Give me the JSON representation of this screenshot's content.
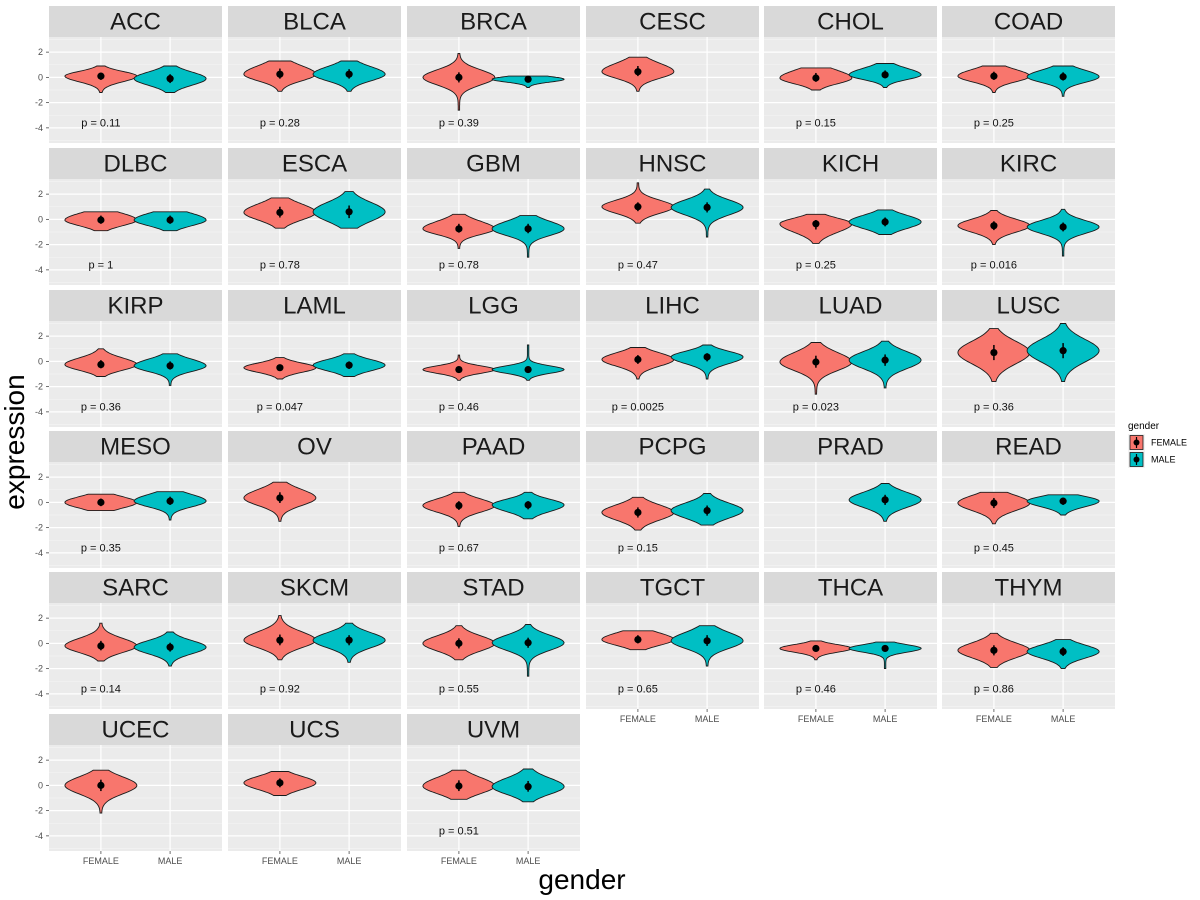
{
  "chart_data": {
    "type": "violin",
    "xlabel": "gender",
    "ylabel": "expression",
    "categories": [
      "FEMALE",
      "MALE"
    ],
    "ylim": [
      -5.2,
      3.2
    ],
    "yticks": [
      -4,
      -2,
      0,
      2
    ],
    "legend": {
      "title": "gender",
      "placement": "right",
      "entries": [
        {
          "name": "FEMALE",
          "color": "#F8766D"
        },
        {
          "name": "MALE",
          "color": "#00BFC4"
        }
      ]
    },
    "panels": [
      {
        "name": "ACC",
        "p": "p = 0.11",
        "FEMALE": {
          "median": 0.1,
          "min": -1.2,
          "max": 0.9,
          "q1": -0.2,
          "q3": 0.35
        },
        "MALE": {
          "median": -0.1,
          "min": -1.2,
          "max": 0.9,
          "q1": -0.45,
          "q3": 0.25
        }
      },
      {
        "name": "BLCA",
        "p": "p = 0.28",
        "FEMALE": {
          "median": 0.25,
          "min": -1.1,
          "max": 1.3,
          "q1": -0.1,
          "q3": 0.7
        },
        "MALE": {
          "median": 0.25,
          "min": -1.1,
          "max": 1.3,
          "q1": -0.1,
          "q3": 0.65
        }
      },
      {
        "name": "BRCA",
        "p": "p = 0.39",
        "FEMALE": {
          "median": 0.0,
          "min": -2.6,
          "max": 1.9,
          "q1": -0.4,
          "q3": 0.4
        },
        "MALE": {
          "median": -0.15,
          "min": -0.8,
          "max": 0.1,
          "q1": -0.3,
          "q3": 0.0
        }
      },
      {
        "name": "CESC",
        "p": "",
        "FEMALE": {
          "median": 0.45,
          "min": -1.1,
          "max": 1.6,
          "q1": 0.1,
          "q3": 0.9
        },
        "MALE": null
      },
      {
        "name": "CHOL",
        "p": "p = 0.15",
        "FEMALE": {
          "median": -0.05,
          "min": -1.0,
          "max": 0.75,
          "q1": -0.35,
          "q3": 0.35
        },
        "MALE": {
          "median": 0.2,
          "min": -0.8,
          "max": 1.1,
          "q1": -0.05,
          "q3": 0.55
        }
      },
      {
        "name": "COAD",
        "p": "p = 0.25",
        "FEMALE": {
          "median": 0.1,
          "min": -1.2,
          "max": 0.9,
          "q1": -0.2,
          "q3": 0.45
        },
        "MALE": {
          "median": 0.05,
          "min": -1.5,
          "max": 0.9,
          "q1": -0.25,
          "q3": 0.4
        }
      },
      {
        "name": "DLBC",
        "p": "p = 1",
        "FEMALE": {
          "median": -0.05,
          "min": -0.9,
          "max": 0.6,
          "q1": -0.35,
          "q3": 0.3
        },
        "MALE": {
          "median": -0.05,
          "min": -0.9,
          "max": 0.6,
          "q1": -0.35,
          "q3": 0.3
        }
      },
      {
        "name": "ESCA",
        "p": "p = 0.78",
        "FEMALE": {
          "median": 0.55,
          "min": -0.7,
          "max": 1.7,
          "q1": 0.15,
          "q3": 1.0
        },
        "MALE": {
          "median": 0.6,
          "min": -0.7,
          "max": 2.2,
          "q1": 0.1,
          "q3": 1.1
        }
      },
      {
        "name": "GBM",
        "p": "p = 0.78",
        "FEMALE": {
          "median": -0.75,
          "min": -2.3,
          "max": 0.4,
          "q1": -1.05,
          "q3": -0.35
        },
        "MALE": {
          "median": -0.75,
          "min": -3.0,
          "max": 0.3,
          "q1": -1.1,
          "q3": -0.35
        }
      },
      {
        "name": "HNSC",
        "p": "p = 0.47",
        "FEMALE": {
          "median": 1.0,
          "min": -0.3,
          "max": 2.9,
          "q1": 0.65,
          "q3": 1.35
        },
        "MALE": {
          "median": 0.95,
          "min": -1.4,
          "max": 2.4,
          "q1": 0.55,
          "q3": 1.35
        }
      },
      {
        "name": "KICH",
        "p": "p = 0.25",
        "FEMALE": {
          "median": -0.35,
          "min": -1.9,
          "max": 0.4,
          "q1": -0.8,
          "q3": -0.05
        },
        "MALE": {
          "median": -0.2,
          "min": -1.2,
          "max": 0.75,
          "q1": -0.55,
          "q3": 0.15
        }
      },
      {
        "name": "KIRC",
        "p": "p = 0.016",
        "FEMALE": {
          "median": -0.5,
          "min": -2.0,
          "max": 0.7,
          "q1": -0.85,
          "q3": -0.15
        },
        "MALE": {
          "median": -0.6,
          "min": -2.9,
          "max": 0.8,
          "q1": -0.95,
          "q3": -0.25
        }
      },
      {
        "name": "KIRP",
        "p": "p = 0.36",
        "FEMALE": {
          "median": -0.25,
          "min": -1.2,
          "max": 1.0,
          "q1": -0.55,
          "q3": 0.1
        },
        "MALE": {
          "median": -0.35,
          "min": -1.9,
          "max": 0.6,
          "q1": -0.65,
          "q3": 0.0
        }
      },
      {
        "name": "LAML",
        "p": "p = 0.047",
        "FEMALE": {
          "median": -0.5,
          "min": -1.4,
          "max": 0.3,
          "q1": -0.75,
          "q3": -0.25
        },
        "MALE": {
          "median": -0.3,
          "min": -1.2,
          "max": 0.6,
          "q1": -0.6,
          "q3": 0.0
        }
      },
      {
        "name": "LGG",
        "p": "p = 0.46",
        "FEMALE": {
          "median": -0.65,
          "min": -1.5,
          "max": 0.5,
          "q1": -0.85,
          "q3": -0.45
        },
        "MALE": {
          "median": -0.65,
          "min": -1.5,
          "max": 1.3,
          "q1": -0.85,
          "q3": -0.45
        }
      },
      {
        "name": "LIHC",
        "p": "p = 0.0025",
        "FEMALE": {
          "median": 0.15,
          "min": -1.4,
          "max": 1.1,
          "q1": -0.2,
          "q3": 0.5
        },
        "MALE": {
          "median": 0.35,
          "min": -1.4,
          "max": 1.3,
          "q1": 0.0,
          "q3": 0.65
        }
      },
      {
        "name": "LUAD",
        "p": "p = 0.023",
        "FEMALE": {
          "median": -0.05,
          "min": -2.6,
          "max": 1.5,
          "q1": -0.5,
          "q3": 0.45
        },
        "MALE": {
          "median": 0.1,
          "min": -2.1,
          "max": 1.6,
          "q1": -0.35,
          "q3": 0.55
        }
      },
      {
        "name": "LUSC",
        "p": "p = 0.36",
        "FEMALE": {
          "median": 0.7,
          "min": -1.6,
          "max": 2.6,
          "q1": 0.1,
          "q3": 1.3
        },
        "MALE": {
          "median": 0.85,
          "min": -1.6,
          "max": 3.0,
          "q1": 0.25,
          "q3": 1.45
        }
      },
      {
        "name": "MESO",
        "p": "p = 0.35",
        "FEMALE": {
          "median": 0.0,
          "min": -0.65,
          "max": 0.65,
          "q1": -0.3,
          "q3": 0.3
        },
        "MALE": {
          "median": 0.1,
          "min": -1.4,
          "max": 0.85,
          "q1": -0.2,
          "q3": 0.45
        }
      },
      {
        "name": "OV",
        "p": "",
        "FEMALE": {
          "median": 0.35,
          "min": -1.5,
          "max": 1.6,
          "q1": -0.05,
          "q3": 0.8
        },
        "MALE": null
      },
      {
        "name": "PAAD",
        "p": "p = 0.67",
        "FEMALE": {
          "median": -0.25,
          "min": -1.9,
          "max": 0.8,
          "q1": -0.6,
          "q3": 0.1
        },
        "MALE": {
          "median": -0.2,
          "min": -1.3,
          "max": 0.8,
          "q1": -0.55,
          "q3": 0.1
        }
      },
      {
        "name": "PCPG",
        "p": "p = 0.15",
        "FEMALE": {
          "median": -0.8,
          "min": -2.2,
          "max": 0.4,
          "q1": -1.2,
          "q3": -0.4
        },
        "MALE": {
          "median": -0.65,
          "min": -1.8,
          "max": 0.7,
          "q1": -1.05,
          "q3": -0.25
        }
      },
      {
        "name": "PRAD",
        "p": "",
        "FEMALE": null,
        "MALE": {
          "median": 0.2,
          "min": -1.5,
          "max": 1.5,
          "q1": -0.2,
          "q3": 0.6
        }
      },
      {
        "name": "READ",
        "p": "p = 0.45",
        "FEMALE": {
          "median": -0.05,
          "min": -1.7,
          "max": 0.8,
          "q1": -0.45,
          "q3": 0.35
        },
        "MALE": {
          "median": 0.1,
          "min": -1.0,
          "max": 0.6,
          "q1": -0.2,
          "q3": 0.35
        }
      },
      {
        "name": "SARC",
        "p": "p = 0.14",
        "FEMALE": {
          "median": -0.2,
          "min": -1.4,
          "max": 1.6,
          "q1": -0.55,
          "q3": 0.2
        },
        "MALE": {
          "median": -0.3,
          "min": -1.8,
          "max": 0.9,
          "q1": -0.65,
          "q3": 0.05
        }
      },
      {
        "name": "SKCM",
        "p": "p = 0.92",
        "FEMALE": {
          "median": 0.25,
          "min": -1.3,
          "max": 2.2,
          "q1": -0.15,
          "q3": 0.7
        },
        "MALE": {
          "median": 0.25,
          "min": -1.5,
          "max": 1.6,
          "q1": -0.15,
          "q3": 0.65
        }
      },
      {
        "name": "STAD",
        "p": "p = 0.55",
        "FEMALE": {
          "median": 0.0,
          "min": -1.3,
          "max": 1.4,
          "q1": -0.4,
          "q3": 0.4
        },
        "MALE": {
          "median": 0.05,
          "min": -2.6,
          "max": 1.5,
          "q1": -0.35,
          "q3": 0.45
        }
      },
      {
        "name": "TGCT",
        "p": "p = 0.65",
        "FEMALE": {
          "median": 0.3,
          "min": -0.5,
          "max": 1.0,
          "q1": 0.0,
          "q3": 0.65
        },
        "MALE": {
          "median": 0.2,
          "min": -1.8,
          "max": 1.4,
          "q1": -0.2,
          "q3": 0.65
        }
      },
      {
        "name": "THCA",
        "p": "p = 0.46",
        "FEMALE": {
          "median": -0.4,
          "min": -1.3,
          "max": 0.2,
          "q1": -0.6,
          "q3": -0.2
        },
        "MALE": {
          "median": -0.4,
          "min": -2.0,
          "max": 0.1,
          "q1": -0.6,
          "q3": -0.2
        }
      },
      {
        "name": "THYM",
        "p": "p = 0.86",
        "FEMALE": {
          "median": -0.55,
          "min": -1.9,
          "max": 0.8,
          "q1": -0.95,
          "q3": -0.15
        },
        "MALE": {
          "median": -0.65,
          "min": -2.0,
          "max": 0.3,
          "q1": -1.0,
          "q3": -0.3
        }
      },
      {
        "name": "UCEC",
        "p": "",
        "FEMALE": {
          "median": 0.0,
          "min": -2.2,
          "max": 1.2,
          "q1": -0.45,
          "q3": 0.45
        },
        "MALE": null
      },
      {
        "name": "UCS",
        "p": "",
        "FEMALE": {
          "median": 0.2,
          "min": -0.8,
          "max": 1.1,
          "q1": -0.15,
          "q3": 0.55
        },
        "MALE": null
      },
      {
        "name": "UVM",
        "p": "p = 0.51",
        "FEMALE": {
          "median": -0.05,
          "min": -1.1,
          "max": 1.2,
          "q1": -0.45,
          "q3": 0.4
        },
        "MALE": {
          "median": -0.1,
          "min": -1.3,
          "max": 1.3,
          "q1": -0.5,
          "q3": 0.35
        }
      }
    ]
  }
}
